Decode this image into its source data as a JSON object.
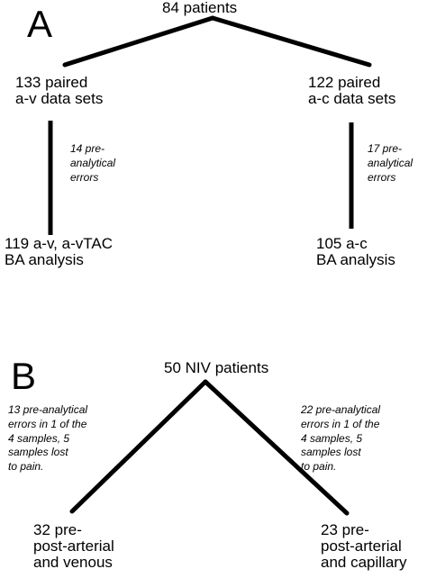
{
  "panels": {
    "a": {
      "label": "A",
      "root": "84 patients",
      "left_node": "133 paired\na-v data sets",
      "right_node": "122 paired\na-c data sets",
      "left_note": "14 pre-\nanalytical\nerrors",
      "right_note": "17 pre-\nanalytical\nerrors",
      "left_result": "119 a-v, a-vTAC\nBA analysis",
      "right_result": "105 a-c\nBA analysis"
    },
    "b": {
      "label": "B",
      "root": "50 NIV patients",
      "left_note": "13 pre-analytical\nerrors in 1 of the\n4 samples, 5\nsamples lost\nto pain.",
      "right_note": "22 pre-analytical\nerrors in 1 of the\n4 samples, 5\nsamples lost\nto pain.",
      "left_result": "32 pre-\npost-arterial\nand venous",
      "right_result": "23 pre-\npost-arterial\nand capillary"
    }
  }
}
